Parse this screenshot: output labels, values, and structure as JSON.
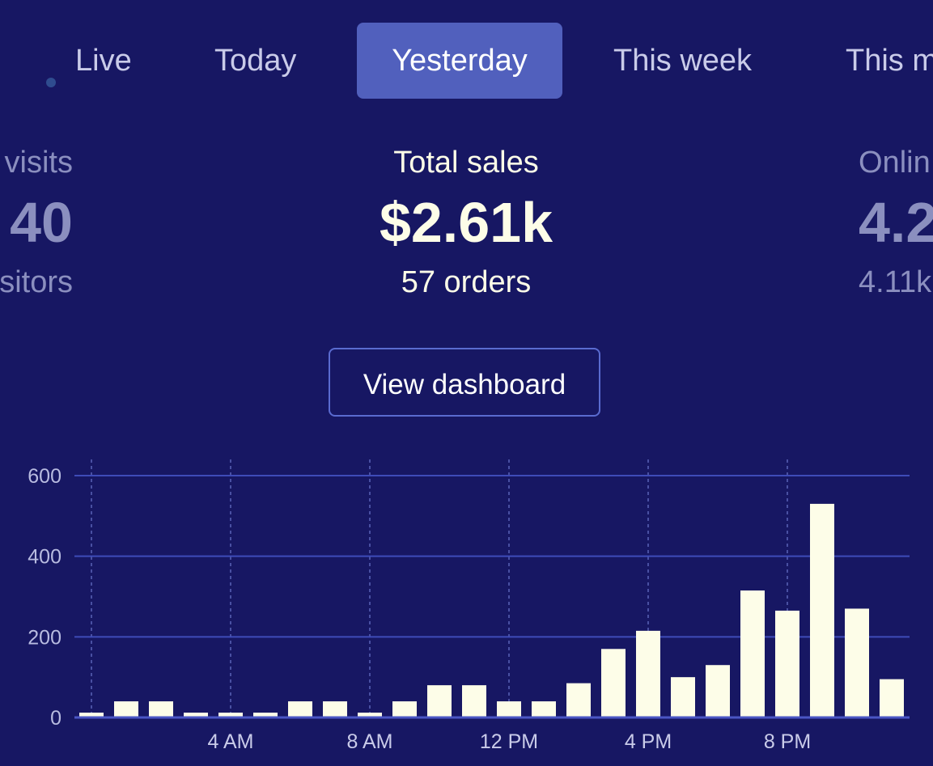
{
  "tabs": [
    {
      "label": "Live",
      "active": false
    },
    {
      "label": "Today",
      "active": false
    },
    {
      "label": "Yesterday",
      "active": true
    },
    {
      "label": "This week",
      "active": false
    },
    {
      "label": "This m",
      "active": false
    }
  ],
  "metrics": {
    "left": {
      "label": "visits",
      "value": "40",
      "sub": "sitors"
    },
    "center": {
      "label": "Total sales",
      "value": "$2.61k",
      "sub": "57 orders"
    },
    "right": {
      "label": "Onlin",
      "value": "4.2",
      "sub": "4.11k"
    }
  },
  "view_dashboard_label": "View dashboard",
  "colors": {
    "background": "#171763",
    "active_tab": "#5160bd",
    "bar": "#fdfde8",
    "grid": "#3e4bb8"
  },
  "chart_data": {
    "type": "bar",
    "y_ticks": [
      "600",
      "400",
      "200",
      "0"
    ],
    "x_tick_labels": [
      "4 AM",
      "8 AM",
      "12 PM",
      "4 PM",
      "8 PM"
    ],
    "ylim": [
      0,
      600
    ],
    "values": [
      12,
      40,
      40,
      12,
      12,
      12,
      40,
      40,
      12,
      40,
      80,
      80,
      40,
      40,
      85,
      170,
      215,
      100,
      130,
      315,
      265,
      530,
      270,
      95
    ],
    "grid": true
  }
}
